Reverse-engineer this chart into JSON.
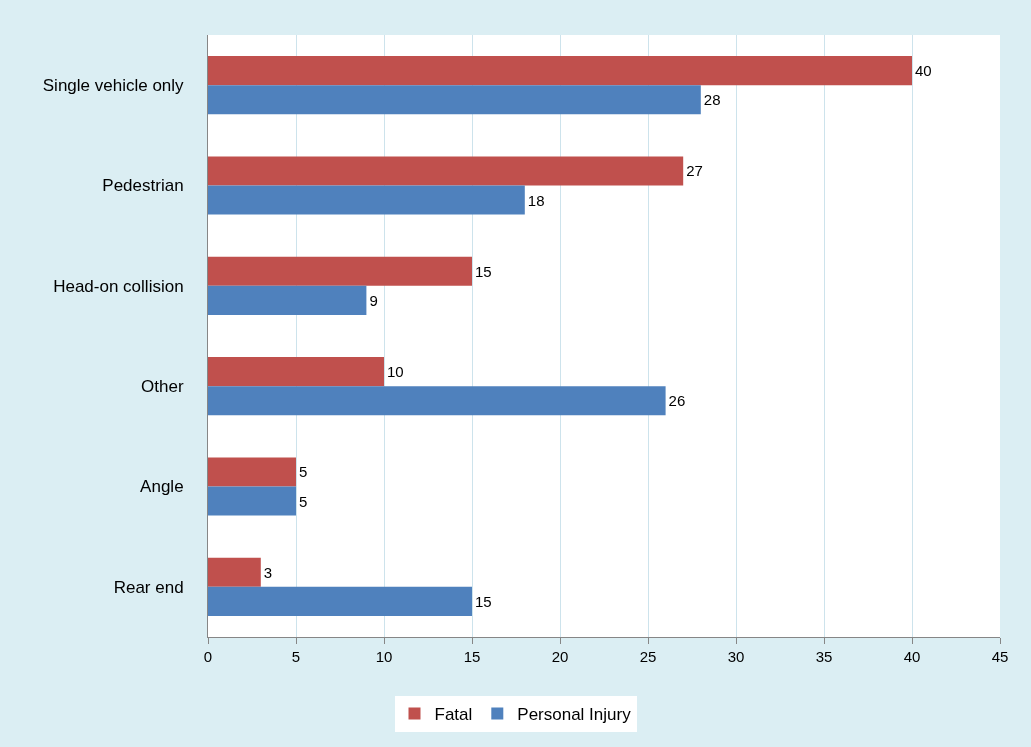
{
  "chart_data": {
    "type": "bar",
    "orientation": "horizontal",
    "categories": [
      "Single vehicle only",
      "Pedestrian",
      "Head-on collision",
      "Other",
      "Angle",
      "Rear end"
    ],
    "series": [
      {
        "name": "Fatal",
        "color": "#c0504d",
        "values": [
          40,
          27,
          15,
          10,
          5,
          3
        ]
      },
      {
        "name": "Personal Injury",
        "color": "#4f81bd",
        "values": [
          28,
          18,
          9,
          26,
          5,
          15
        ]
      }
    ],
    "xlim": [
      0,
      45
    ],
    "xticks": [
      0,
      5,
      10,
      15,
      20,
      25,
      30,
      35,
      40,
      45
    ],
    "grid": "x",
    "legend": "bottom",
    "data_labels": true
  }
}
